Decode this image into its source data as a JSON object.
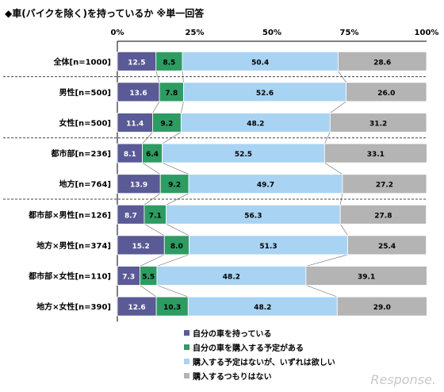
{
  "title": "◆車(バイクを除く)を持っているか ※単一回答",
  "watermark": "Response.",
  "chart_data": {
    "type": "bar",
    "orientation": "horizontal",
    "stacked": true,
    "xlim": [
      0,
      100
    ],
    "x_ticks": [
      "0%",
      "25%",
      "50%",
      "75%",
      "100%"
    ],
    "categories": [
      "全体[n=1000]",
      "男性[n=500]",
      "女性[n=500]",
      "都市部[n=236]",
      "地方[n=764]",
      "都市部×男性[n=126]",
      "地方×男性[n=374]",
      "都市部×女性[n=110]",
      "地方×女性[n=390]"
    ],
    "group_separators_after": [
      0,
      2,
      4
    ],
    "series": [
      {
        "name": "自分の車を持っている",
        "color": "#5a5a96",
        "values": [
          12.5,
          13.6,
          11.4,
          8.1,
          13.9,
          8.7,
          15.2,
          7.3,
          12.6
        ]
      },
      {
        "name": "自分の車を購入する予定がある",
        "color": "#2e9b63",
        "values": [
          8.5,
          7.8,
          9.2,
          6.4,
          9.2,
          7.1,
          8.0,
          5.5,
          10.3
        ]
      },
      {
        "name": "購入する予定はないが、いずれは欲しい",
        "color": "#a9d3f3",
        "values": [
          50.4,
          52.6,
          48.2,
          52.5,
          49.7,
          56.3,
          51.3,
          48.2,
          48.2
        ]
      },
      {
        "name": "購入するつもりはない",
        "color": "#b4b4b4",
        "values": [
          28.6,
          26.0,
          31.2,
          33.1,
          27.2,
          27.8,
          25.4,
          39.1,
          29.0
        ]
      }
    ]
  }
}
